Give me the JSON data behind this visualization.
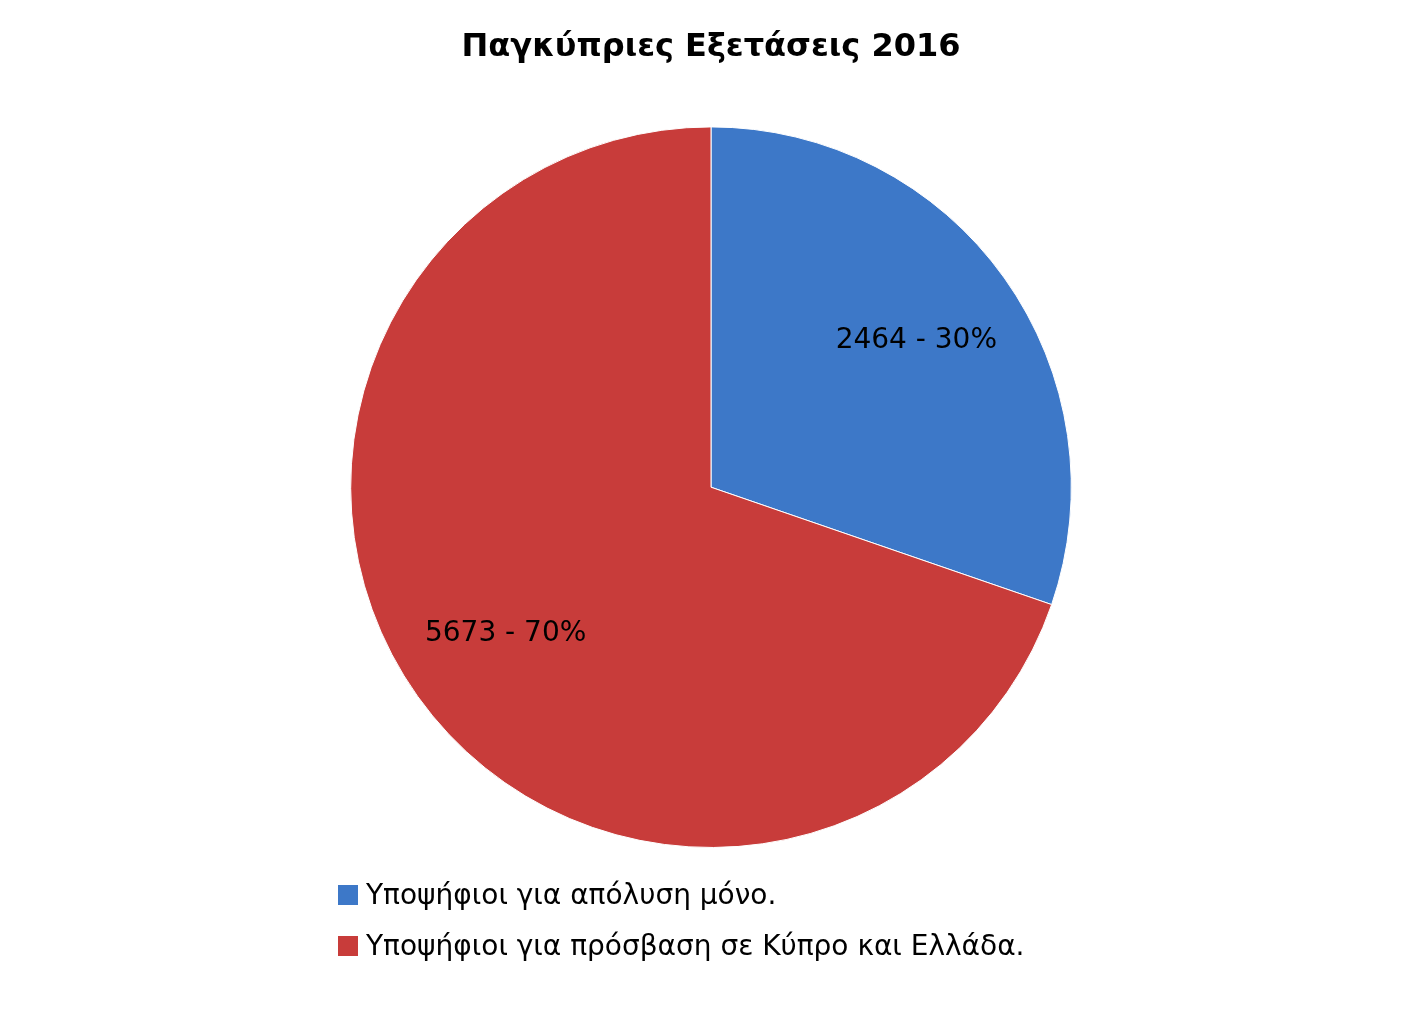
{
  "chart_data": {
    "type": "pie",
    "title": "Παγκύπριες Εξετάσεις 2016",
    "categories": [
      "Υποψήφιοι για απόλυση μόνο.",
      "Υποψήφιοι για πρόσβαση σε Κύπρο και Ελλάδα."
    ],
    "values": [
      2464,
      5673
    ],
    "colors": [
      "#3d78c8",
      "#c83c3a"
    ],
    "value_labels": [
      "2464 - 30%",
      "5673 - 70%"
    ],
    "legend": "bottom"
  }
}
